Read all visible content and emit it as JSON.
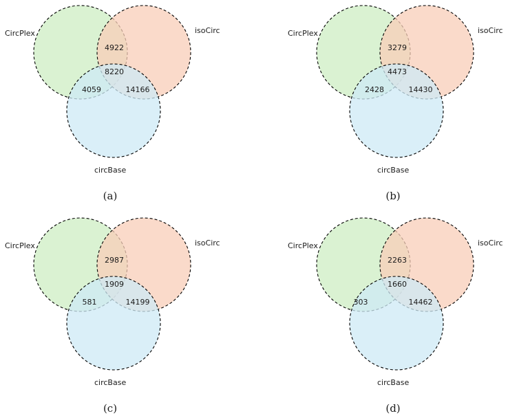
{
  "colors": {
    "circplex": "#cdeec3",
    "isocirc": "#f8cdb8",
    "circbase": "#cde9f6"
  },
  "panels": [
    {
      "caption": "(a)",
      "sets": {
        "a": "CircPlex",
        "b": "isoCirc",
        "c": "circBase"
      },
      "counts": {
        "ab": "4922",
        "abc": "8220",
        "ac": "4059",
        "bc": "14166"
      }
    },
    {
      "caption": "(b)",
      "sets": {
        "a": "CircPlex",
        "b": "isoCirc",
        "c": "circBase"
      },
      "counts": {
        "ab": "3279",
        "abc": "4473",
        "ac": "2428",
        "bc": "14430"
      }
    },
    {
      "caption": "(c)",
      "sets": {
        "a": "CircPlex",
        "b": "isoCirc",
        "c": "circBase"
      },
      "counts": {
        "ab": "2987",
        "abc": "1909",
        "ac": "581",
        "bc": "14199"
      }
    },
    {
      "caption": "(d)",
      "sets": {
        "a": "CircPlex",
        "b": "isoCirc",
        "c": "circBase"
      },
      "counts": {
        "ab": "2263",
        "abc": "1660",
        "ac": "303",
        "bc": "14462"
      }
    }
  ]
}
